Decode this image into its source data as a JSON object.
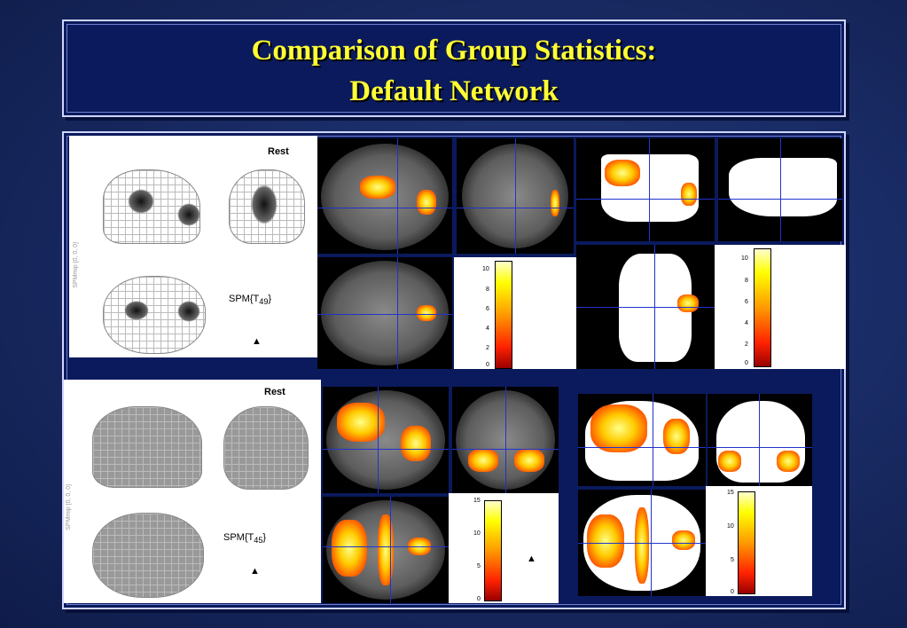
{
  "slide": {
    "title_line1": "Comparison of Group Statistics:",
    "title_line2": "Default  Network"
  },
  "top_row": {
    "condition_label": "Rest",
    "stat_label_base": "SPM{T",
    "stat_label_sub": "49",
    "stat_label_end": "}",
    "axis_label": "SPMmip [0, 0, 0]",
    "colorbar1_ticks": [
      "10",
      "8",
      "6",
      "4",
      "2",
      "0"
    ],
    "colorbar2_ticks": [
      "10",
      "8",
      "6",
      "4",
      "2",
      "0"
    ]
  },
  "bottom_row": {
    "condition_label": "Rest",
    "stat_label_base": "SPM{T",
    "stat_label_sub": "45",
    "stat_label_end": "}",
    "axis_label": "SPMmip [0, 0, 0]",
    "colorbar1_ticks": [
      "15",
      "10",
      "5",
      "0"
    ],
    "colorbar2_ticks": [
      "15",
      "10",
      "5",
      "0"
    ]
  }
}
